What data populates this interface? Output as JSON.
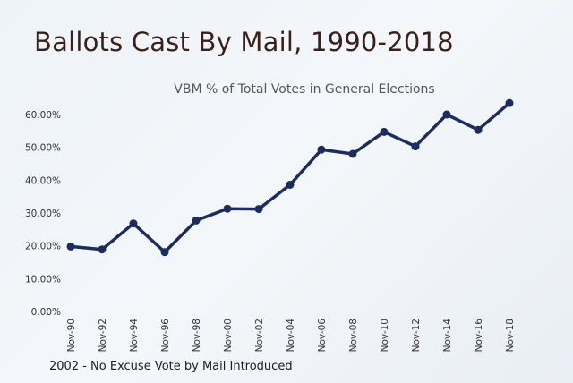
{
  "chart_data": {
    "type": "line",
    "title": "Ballots Cast By Mail, 1990-2018",
    "subtitle": "VBM % of Total Votes in General Elections",
    "xlabel": "",
    "ylabel": "",
    "categories": [
      "Nov-90",
      "Nov-92",
      "Nov-94",
      "Nov-96",
      "Nov-98",
      "Nov-00",
      "Nov-02",
      "Nov-04",
      "Nov-06",
      "Nov-08",
      "Nov-10",
      "Nov-12",
      "Nov-14",
      "Nov-16",
      "Nov-18"
    ],
    "yticks": [
      "0.00%",
      "10.00%",
      "20.00%",
      "30.00%",
      "40.00%",
      "50.00%",
      "60.00%"
    ],
    "ylim": [
      0,
      60
    ],
    "series": [
      {
        "values": [
          19.8,
          18.9,
          26.8,
          18.1,
          27.7,
          31.3,
          31.2,
          38.6,
          49.3,
          48.0,
          54.7,
          50.3,
          60.0,
          55.3,
          63.5
        ],
        "color": "#1c2c5e"
      }
    ],
    "grid": false,
    "legend": "none",
    "annotation": "2002 - No Excuse Vote by Mail Introduced"
  }
}
